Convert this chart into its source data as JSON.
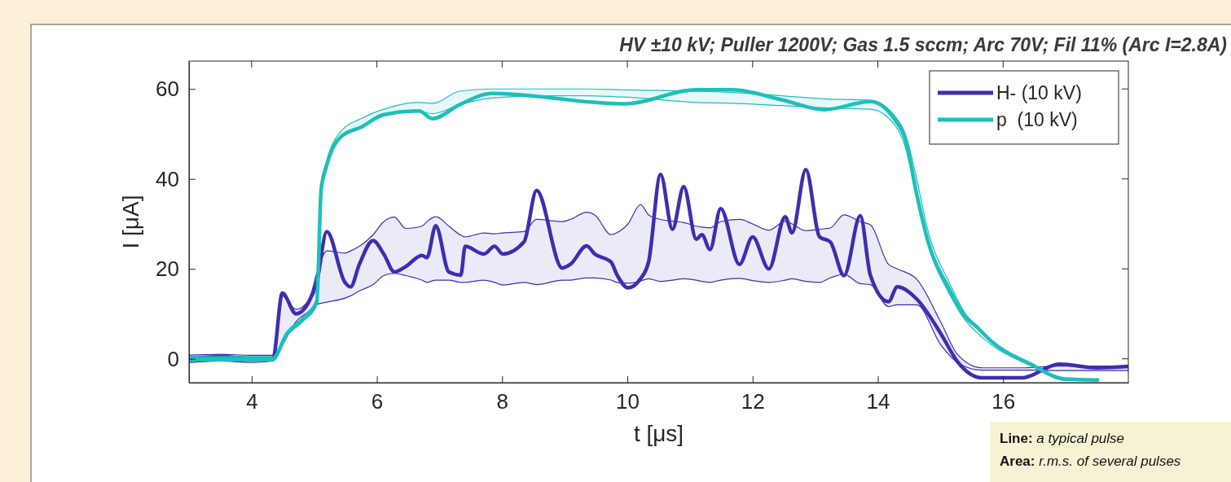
{
  "chart_data": {
    "type": "line",
    "title": "HV ±10 kV; Puller 1200V; Gas 1.5 sccm; Arc 70V; Fil 11% (Arc I=2.8A)",
    "xlabel": "t [μs]",
    "ylabel": "I [μA]",
    "xlim": [
      3,
      18
    ],
    "xticks": [
      4,
      6,
      8,
      10,
      12,
      14,
      16
    ],
    "ylim": [
      -5.3,
      66.2
    ],
    "yticks": [
      0,
      20,
      40,
      60
    ],
    "grid": false,
    "legend": "top right",
    "annotations": [
      "Line: a typical pulse",
      "Area: r.m.s. of several pulses"
    ],
    "series": [
      {
        "name": "H- (10 kV)",
        "color": "#3d2eb0",
        "x": [
          3,
          3.5,
          4,
          4.34,
          4.49,
          4.71,
          4.91,
          5.04,
          5.2,
          5.49,
          5.58,
          5.72,
          5.94,
          6.11,
          6.28,
          6.46,
          6.72,
          6.8,
          6.94,
          7.15,
          7.34,
          7.41,
          7.71,
          7.88,
          8.01,
          8.35,
          8.55,
          8.96,
          9.09,
          9.35,
          9.48,
          9.74,
          9.83,
          10.01,
          10.21,
          10.34,
          10.53,
          10.72,
          10.9,
          11.1,
          11.19,
          11.32,
          11.49,
          11.79,
          12,
          12.26,
          12.52,
          12.63,
          12.85,
          13.07,
          13.24,
          13.46,
          13.72,
          13.88,
          14.17,
          14.31,
          14.62,
          15.01,
          15.27,
          15.66,
          16.3,
          16.9,
          17.5,
          18
        ],
        "values": [
          0,
          0.5,
          0,
          0,
          14.6,
          10,
          12.6,
          17,
          28.3,
          17,
          16,
          21,
          26.3,
          23.3,
          19.3,
          20.5,
          23,
          22.5,
          29.6,
          19.3,
          18.6,
          25,
          23.3,
          25,
          23.3,
          26,
          37.4,
          20.2,
          21,
          25.1,
          23.3,
          21.5,
          18.8,
          15.8,
          17.8,
          21.6,
          41,
          28.8,
          38.3,
          26.6,
          27.6,
          24.3,
          33.4,
          21,
          27.1,
          20,
          31.6,
          28,
          42.1,
          27.1,
          26,
          18.5,
          31.8,
          18.6,
          12.7,
          16,
          13.3,
          5.5,
          -0.6,
          -4.2,
          -4.2,
          -1.2,
          -2,
          -1.7
        ],
        "upper": [
          0.8,
          1,
          0.8,
          0.8,
          14,
          11,
          13,
          19,
          24,
          23.5,
          24,
          25,
          27.6,
          30.5,
          31.5,
          29,
          29.5,
          30.5,
          31.6,
          29.5,
          27.5,
          27.1,
          28,
          27.8,
          28,
          28.3,
          31,
          30.5,
          31,
          32.6,
          32,
          27.6,
          28,
          30,
          34.3,
          32,
          31,
          30.6,
          30.3,
          29.5,
          29.3,
          29.1,
          30.5,
          31,
          30,
          28.6,
          30.6,
          30,
          28.5,
          28.8,
          29.1,
          32,
          30.5,
          29.8,
          21,
          20,
          17.7,
          8,
          1,
          -2,
          -2,
          -1.6,
          -1.6,
          -1.6
        ],
        "lower": [
          -0.8,
          -0.5,
          -0.8,
          -0.5,
          3,
          8.3,
          10.5,
          12.1,
          12.6,
          13.5,
          14,
          15.1,
          16.5,
          18.5,
          19,
          18.5,
          17.5,
          17,
          17.5,
          17.5,
          17,
          17,
          17.5,
          17,
          16.4,
          17,
          16.5,
          17.5,
          17.5,
          18,
          18,
          17.5,
          17,
          16.8,
          17.3,
          17.8,
          17.2,
          17.5,
          17.8,
          17.5,
          17.2,
          17,
          17.5,
          17.9,
          17.4,
          17,
          17.5,
          17.8,
          17.2,
          17,
          18,
          18.8,
          16.7,
          16.5,
          11.6,
          12,
          12,
          3,
          -0.8,
          -2.5,
          -2.5,
          -2.6,
          -2.6,
          -2.6
        ]
      },
      {
        "name": "p  (10 kV)",
        "color": "#1ebfba",
        "x": [
          3,
          4,
          4.34,
          4.56,
          4.82,
          5.04,
          5.11,
          5.2,
          5.42,
          5.76,
          6.11,
          6.67,
          6.89,
          7.32,
          7.84,
          8.61,
          9.31,
          9.96,
          11.1,
          11.68,
          12.46,
          13.15,
          13.88,
          14.27,
          14.44,
          14.62,
          14.79,
          15.14,
          15.4,
          15.57,
          15.82,
          16.44,
          16.99,
          17.51
        ],
        "values": [
          0,
          0,
          0,
          5.5,
          8.8,
          12.6,
          37.6,
          43.2,
          49.3,
          51.6,
          54.3,
          55.1,
          53.4,
          56.5,
          59,
          58.3,
          57.2,
          56.7,
          59.8,
          59.8,
          57.6,
          55.4,
          57.2,
          53.2,
          48.8,
          36.6,
          26.6,
          15.5,
          9.3,
          7.2,
          3.8,
          -1.2,
          -4.5,
          -4.7
        ],
        "upper": [
          0.5,
          0.5,
          0.5,
          6,
          9.3,
          13.5,
          38,
          44,
          50.5,
          53.5,
          55.5,
          57,
          56.8,
          59.5,
          60,
          60,
          60,
          59.8,
          59.5,
          59.2,
          58.5,
          57.8,
          57.5,
          54,
          50,
          40,
          29,
          17,
          10,
          7.5,
          4,
          -1,
          -4.4,
          -4.6
        ],
        "lower": [
          -0.5,
          -0.5,
          -0.5,
          5,
          8.3,
          12,
          36,
          42,
          49,
          51.5,
          54,
          55,
          54.5,
          56.5,
          58,
          58.5,
          58.5,
          58.2,
          57,
          56.8,
          56.3,
          55.8,
          55.5,
          52,
          47,
          36,
          26,
          14.5,
          8.5,
          6,
          3,
          -1.5,
          -4.8,
          -4.9
        ]
      }
    ]
  }
}
